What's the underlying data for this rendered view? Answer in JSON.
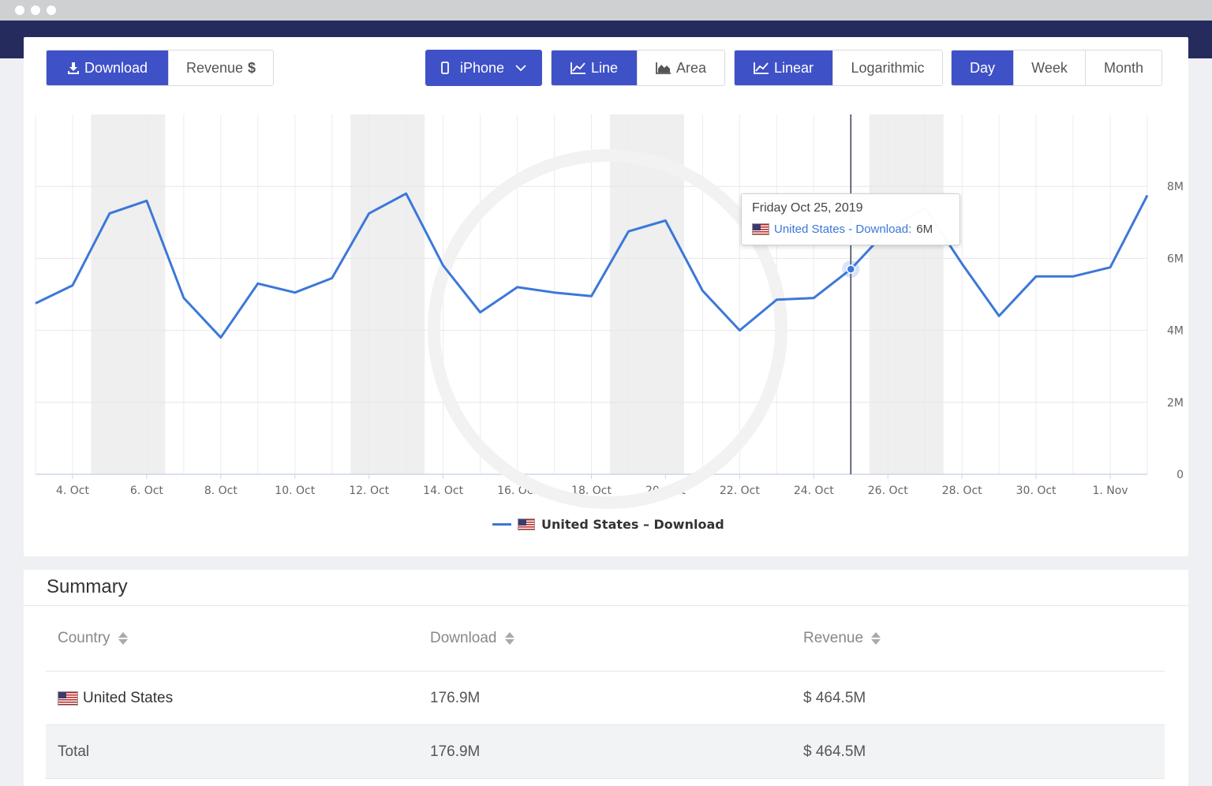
{
  "toolbar": {
    "metric": {
      "download_label": "Download",
      "revenue_label": "Revenue",
      "revenue_symbol": "$"
    },
    "device": {
      "selected": "iPhone"
    },
    "chart_type": {
      "line_label": "Line",
      "area_label": "Area"
    },
    "scale": {
      "linear_label": "Linear",
      "log_label": "Logarithmic"
    },
    "period": {
      "day_label": "Day",
      "week_label": "Week",
      "month_label": "Month"
    }
  },
  "colors": {
    "accent": "#3f51c7",
    "series": "#3b78d8",
    "nav_bar": "#262b5e"
  },
  "chart_data": {
    "type": "line",
    "x": [
      "3. Oct",
      "4. Oct",
      "5. Oct",
      "6. Oct",
      "7. Oct",
      "8. Oct",
      "9. Oct",
      "10. Oct",
      "11. Oct",
      "12. Oct",
      "13. Oct",
      "14. Oct",
      "15. Oct",
      "16. Oct",
      "17. Oct",
      "18. Oct",
      "19. Oct",
      "20. Oct",
      "21. Oct",
      "22. Oct",
      "23. Oct",
      "24. Oct",
      "25. Oct",
      "26. Oct",
      "27. Oct",
      "28. Oct",
      "29. Oct",
      "30. Oct",
      "31. Oct",
      "1. Nov",
      "2. Nov"
    ],
    "x_tick_labels": [
      "4. Oct",
      "6. Oct",
      "8. Oct",
      "10. Oct",
      "12. Oct",
      "14. Oct",
      "16. Oct",
      "18. Oct",
      "20. Oct",
      "22. Oct",
      "24. Oct",
      "26. Oct",
      "28. Oct",
      "30. Oct",
      "1. Nov"
    ],
    "series": [
      {
        "name": "United States - Download",
        "values": [
          4.75,
          5.25,
          7.25,
          7.6,
          4.9,
          3.8,
          5.3,
          5.05,
          5.45,
          7.25,
          7.8,
          5.8,
          4.5,
          5.2,
          5.05,
          4.95,
          6.75,
          7.05,
          5.1,
          4.0,
          4.85,
          4.9,
          5.7,
          6.8,
          7.4,
          5.85,
          4.4,
          5.5,
          5.5,
          5.75,
          7.75
        ]
      }
    ],
    "y_unit": "M",
    "yticks": [
      "0",
      "2M",
      "4M",
      "6M",
      "8M"
    ],
    "ylim": [
      0,
      10
    ],
    "weekend_bands": [
      [
        "5. Oct",
        "6. Oct"
      ],
      [
        "12. Oct",
        "13. Oct"
      ],
      [
        "19. Oct",
        "20. Oct"
      ],
      [
        "26. Oct",
        "27. Oct"
      ]
    ],
    "crosshair_x": "25. Oct",
    "y_axis_position": "right",
    "grid": true,
    "legend_position": "bottom-center"
  },
  "tooltip": {
    "date": "Friday Oct 25, 2019",
    "series_label": "United States - Download",
    "value": "6M"
  },
  "legend": {
    "label": "United States – Download"
  },
  "summary": {
    "title": "Summary",
    "columns": [
      "Country",
      "Download",
      "Revenue"
    ],
    "rows": [
      {
        "country": "United States",
        "download": "176.9M",
        "revenue": "$ 464.5M"
      }
    ],
    "total": {
      "label": "Total",
      "download": "176.9M",
      "revenue": "$ 464.5M"
    }
  }
}
